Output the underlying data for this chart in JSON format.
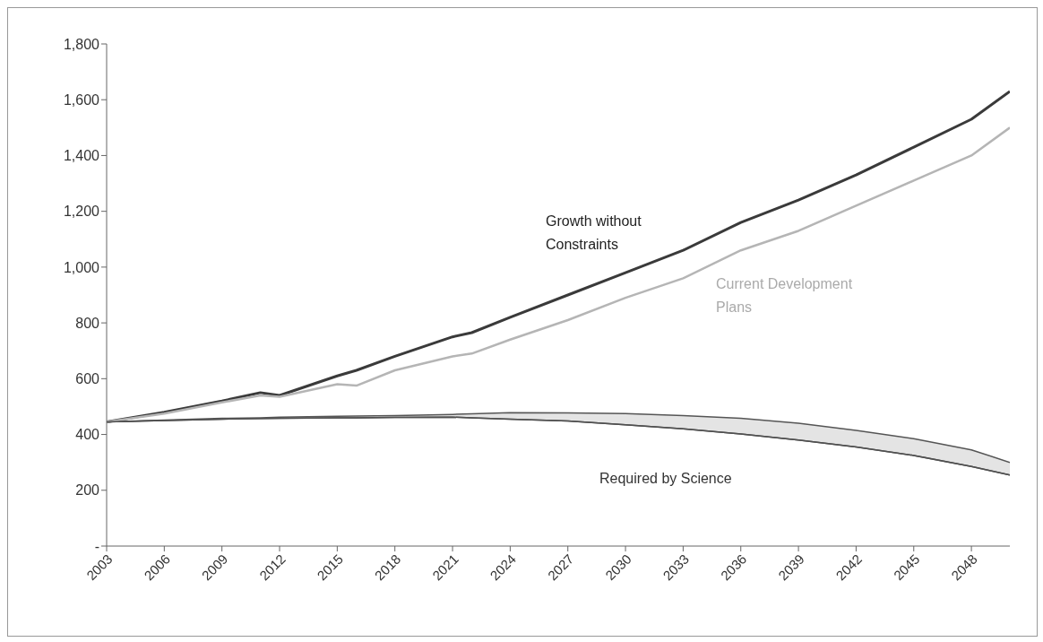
{
  "chart_data": {
    "type": "line",
    "x": [
      2003,
      2006,
      2009,
      2011,
      2012,
      2015,
      2016,
      2018,
      2021,
      2022,
      2024,
      2027,
      2030,
      2033,
      2036,
      2039,
      2042,
      2045,
      2048,
      2050
    ],
    "series": [
      {
        "name": "Growth without Constraints",
        "color": "#3a3a3a",
        "values": [
          445,
          480,
          520,
          550,
          540,
          610,
          630,
          680,
          750,
          765,
          820,
          900,
          980,
          1060,
          1160,
          1240,
          1330,
          1430,
          1530,
          1630
        ]
      },
      {
        "name": "Current Development Plans",
        "color": "#b5b5b5",
        "values": [
          445,
          475,
          515,
          540,
          535,
          580,
          575,
          630,
          680,
          690,
          740,
          810,
          890,
          960,
          1060,
          1130,
          1220,
          1310,
          1400,
          1500
        ]
      },
      {
        "name": "Required by Science",
        "type": "area",
        "color": "#555555",
        "values": [
          445,
          452,
          458,
          460,
          462,
          465,
          466,
          468,
          472,
          474,
          478,
          477,
          475,
          468,
          458,
          440,
          415,
          385,
          345,
          300
        ]
      },
      {
        "type": "line",
        "color": "#505050",
        "values": [
          445,
          450,
          455,
          457,
          458,
          460,
          460,
          461,
          462,
          460,
          455,
          448,
          435,
          420,
          402,
          380,
          355,
          325,
          285,
          255
        ]
      }
    ],
    "xlim": [
      2003,
      2050
    ],
    "xticks": [
      2003,
      2006,
      2009,
      2012,
      2015,
      2018,
      2021,
      2024,
      2027,
      2030,
      2033,
      2036,
      2039,
      2042,
      2045,
      2048
    ],
    "ylim": [
      0,
      1800
    ],
    "yticks": [
      {
        "value": 0,
        "label": "-"
      },
      {
        "value": 200,
        "label": "200"
      },
      {
        "value": 400,
        "label": "400"
      },
      {
        "value": 600,
        "label": "600"
      },
      {
        "value": 800,
        "label": "800"
      },
      {
        "value": 1000,
        "label": "1,000"
      },
      {
        "value": 1200,
        "label": "1,200"
      },
      {
        "value": 1400,
        "label": "1,400"
      },
      {
        "value": 1600,
        "label": "1,600"
      },
      {
        "value": 1800,
        "label": "1,800"
      }
    ],
    "grid": false,
    "legend": false,
    "marker": "none",
    "line_style": "solid"
  }
}
